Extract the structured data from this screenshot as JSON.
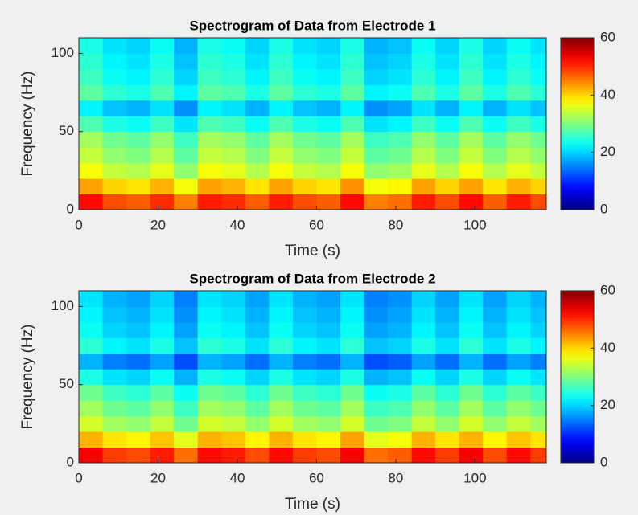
{
  "chart_data": [
    {
      "type": "heatmap",
      "title": "Spectrogram of Data from Electrode 1",
      "xlabel": "Time (s)",
      "ylabel": "Frequency (Hz)",
      "colormap": "jet",
      "clim": [
        0,
        60
      ],
      "cticks": [
        0,
        20,
        40,
        60
      ],
      "xlim": [
        0,
        118
      ],
      "xticks": [
        0,
        20,
        40,
        60,
        80,
        100
      ],
      "ylim": [
        0,
        110
      ],
      "yticks": [
        0,
        50,
        100
      ],
      "x_bins": [
        0,
        6,
        12,
        18,
        24,
        30,
        36,
        42,
        48,
        54,
        60,
        66,
        72,
        78,
        84,
        90,
        96,
        102,
        108,
        114,
        118
      ],
      "y_bins": [
        0,
        10,
        20,
        30,
        40,
        50,
        60,
        70,
        80,
        90,
        100,
        110
      ],
      "values": [
        [
          52,
          48,
          47,
          50,
          45,
          51,
          50,
          47,
          51,
          48,
          47,
          52,
          45,
          46,
          51,
          48,
          52,
          47,
          51,
          48
        ],
        [
          43,
          40,
          39,
          42,
          37,
          43,
          42,
          39,
          43,
          40,
          39,
          44,
          37,
          38,
          43,
          40,
          43,
          39,
          42,
          40
        ],
        [
          37,
          34,
          33,
          36,
          31,
          37,
          36,
          33,
          37,
          34,
          33,
          37,
          31,
          32,
          36,
          33,
          37,
          33,
          36,
          34
        ],
        [
          34,
          31,
          30,
          33,
          28,
          34,
          33,
          30,
          34,
          31,
          30,
          34,
          28,
          29,
          33,
          30,
          34,
          30,
          33,
          31
        ],
        [
          32,
          29,
          28,
          31,
          26,
          32,
          31,
          28,
          32,
          29,
          28,
          32,
          26,
          27,
          31,
          28,
          32,
          28,
          31,
          29
        ],
        [
          27,
          24,
          23,
          26,
          21,
          27,
          26,
          23,
          27,
          24,
          23,
          27,
          21,
          22,
          26,
          23,
          27,
          23,
          26,
          24
        ],
        [
          22,
          19,
          18,
          21,
          16,
          22,
          21,
          18,
          22,
          19,
          18,
          22,
          16,
          17,
          21,
          18,
          22,
          18,
          21,
          19
        ],
        [
          28,
          25,
          24,
          27,
          22,
          28,
          27,
          24,
          28,
          25,
          24,
          28,
          22,
          23,
          27,
          24,
          28,
          24,
          27,
          25
        ],
        [
          26,
          23,
          22,
          25,
          20,
          26,
          25,
          22,
          26,
          23,
          22,
          26,
          20,
          21,
          25,
          22,
          26,
          22,
          25,
          23
        ],
        [
          25,
          22,
          21,
          24,
          19,
          25,
          24,
          21,
          25,
          22,
          21,
          25,
          19,
          20,
          24,
          21,
          25,
          21,
          24,
          22
        ],
        [
          24,
          21,
          20,
          23,
          18,
          24,
          23,
          20,
          24,
          21,
          20,
          24,
          18,
          19,
          23,
          20,
          24,
          20,
          23,
          21
        ]
      ]
    },
    {
      "type": "heatmap",
      "title": "Spectrogram of Data from Electrode 2",
      "xlabel": "Time (s)",
      "ylabel": "Frequency (Hz)",
      "colormap": "jet",
      "clim": [
        0,
        60
      ],
      "cticks": [
        0,
        20,
        40,
        60
      ],
      "xlim": [
        0,
        118
      ],
      "xticks": [
        0,
        20,
        40,
        60,
        80,
        100
      ],
      "ylim": [
        0,
        110
      ],
      "yticks": [
        0,
        50,
        100
      ],
      "x_bins": [
        0,
        6,
        12,
        18,
        24,
        30,
        36,
        42,
        48,
        54,
        60,
        66,
        72,
        78,
        84,
        90,
        96,
        102,
        108,
        114,
        118
      ],
      "y_bins": [
        0,
        10,
        20,
        30,
        40,
        50,
        60,
        70,
        80,
        90,
        100,
        110
      ],
      "values": [
        [
          53,
          49,
          48,
          51,
          46,
          52,
          51,
          48,
          52,
          49,
          48,
          53,
          46,
          47,
          52,
          49,
          53,
          48,
          52,
          49
        ],
        [
          42,
          39,
          38,
          41,
          36,
          42,
          41,
          38,
          42,
          39,
          38,
          43,
          36,
          37,
          42,
          39,
          42,
          38,
          41,
          39
        ],
        [
          35,
          32,
          31,
          34,
          29,
          35,
          34,
          31,
          35,
          32,
          31,
          35,
          29,
          30,
          34,
          31,
          35,
          31,
          34,
          32
        ],
        [
          32,
          29,
          28,
          31,
          26,
          32,
          31,
          28,
          32,
          29,
          28,
          32,
          26,
          27,
          31,
          28,
          32,
          28,
          31,
          29
        ],
        [
          29,
          26,
          25,
          28,
          23,
          29,
          28,
          25,
          29,
          26,
          25,
          29,
          23,
          24,
          28,
          25,
          29,
          25,
          28,
          26
        ],
        [
          24,
          21,
          20,
          23,
          18,
          24,
          23,
          20,
          24,
          21,
          20,
          24,
          18,
          19,
          23,
          20,
          24,
          20,
          23,
          21
        ],
        [
          18,
          15,
          14,
          17,
          12,
          18,
          17,
          14,
          18,
          15,
          14,
          18,
          12,
          13,
          17,
          14,
          18,
          14,
          17,
          15
        ],
        [
          25,
          22,
          21,
          24,
          19,
          25,
          24,
          21,
          25,
          22,
          21,
          25,
          19,
          20,
          24,
          21,
          25,
          21,
          24,
          22
        ],
        [
          23,
          20,
          19,
          22,
          17,
          23,
          22,
          19,
          23,
          20,
          19,
          23,
          17,
          18,
          22,
          19,
          23,
          19,
          22,
          20
        ],
        [
          22,
          19,
          18,
          21,
          16,
          22,
          21,
          18,
          22,
          19,
          18,
          22,
          16,
          17,
          21,
          18,
          22,
          18,
          21,
          19
        ],
        [
          21,
          18,
          17,
          20,
          15,
          21,
          20,
          17,
          21,
          18,
          17,
          21,
          15,
          16,
          20,
          17,
          21,
          17,
          20,
          18
        ]
      ]
    }
  ]
}
